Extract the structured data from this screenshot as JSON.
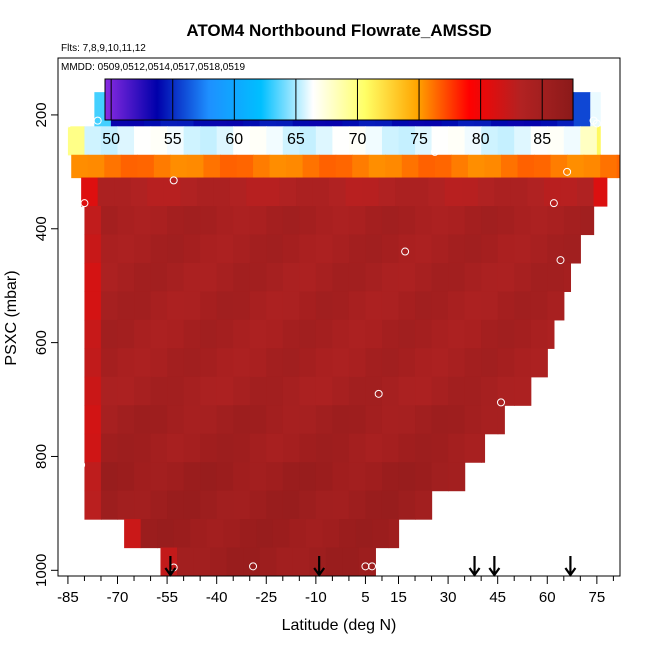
{
  "chart_data": {
    "type": "heatmap",
    "title": "ATOM4 Northbound Flowrate_AMSSD",
    "flights_label": "Flts: 7,8,9,10,11,12",
    "dates_label": "MMDD: 0509,0512,0514,0517,0518,0519",
    "xlabel": "Latitude (deg N)",
    "ylabel": "PSXC (mbar)",
    "xlim": [
      -88,
      82
    ],
    "ylim": [
      1010,
      100
    ],
    "x_ticks": [
      -85,
      -70,
      -55,
      -40,
      -25,
      -10,
      5,
      15,
      30,
      45,
      60,
      75
    ],
    "x_tick_labels": [
      "-85",
      "-70",
      "-55",
      "-40",
      "-25",
      "-10",
      "5",
      "15",
      "30",
      "45",
      "60",
      "75"
    ],
    "x_minor_step": 5,
    "y_ticks": [
      200,
      400,
      600,
      800,
      1000
    ],
    "y_tick_labels": [
      "200",
      "400",
      "600",
      "800",
      "1000"
    ],
    "colorbar": {
      "min": 49.5,
      "max": 87.5,
      "ticks": [
        50,
        55,
        60,
        65,
        70,
        75,
        80,
        85
      ],
      "tick_labels": [
        "50",
        "55",
        "60",
        "65",
        "70",
        "75",
        "80",
        "85"
      ],
      "colors": [
        "#8a2be2",
        "#0000aa",
        "#1e90ff",
        "#00bfff",
        "#ffffff",
        "#ffff66",
        "#ffa500",
        "#ff0000",
        "#b22222",
        "#8b1a1a"
      ]
    },
    "pressure_bins": [
      160,
      220,
      270,
      310,
      360,
      410,
      460,
      510,
      560,
      610,
      660,
      710,
      760,
      810,
      860,
      910,
      960,
      1010
    ],
    "bin_values": [
      54,
      66,
      76,
      83.5,
      84.5,
      84.5,
      84.5,
      84.5,
      84.5,
      84.5,
      84.5,
      85,
      85,
      85.5,
      85.5,
      85.5,
      85.5
    ],
    "bin_lat_ranges": [
      [
        -77,
        76
      ],
      [
        -85,
        76
      ],
      [
        -84,
        82
      ],
      [
        -81,
        78
      ],
      [
        -80,
        74
      ],
      [
        -80,
        70
      ],
      [
        -80,
        67
      ],
      [
        -80,
        65
      ],
      [
        -80,
        62
      ],
      [
        -80,
        60
      ],
      [
        -80,
        55
      ],
      [
        -80,
        47
      ],
      [
        -80,
        41
      ],
      [
        -80,
        35
      ],
      [
        -80,
        25
      ],
      [
        -68,
        15
      ],
      [
        -57,
        8
      ]
    ],
    "shoulder_values": [
      70,
      72,
      76,
      79,
      80,
      80,
      80,
      80,
      80,
      80,
      80,
      80,
      80,
      80,
      80,
      80,
      80
    ],
    "profile_points": [
      {
        "lat": -85,
        "p": 215
      },
      {
        "lat": -76,
        "p": 210
      },
      {
        "lat": 75,
        "p": 215
      },
      {
        "lat": 74,
        "p": 210
      },
      {
        "lat": 26,
        "p": 265
      },
      {
        "lat": 66,
        "p": 300
      },
      {
        "lat": -53,
        "p": 315
      },
      {
        "lat": -80,
        "p": 355
      },
      {
        "lat": 62,
        "p": 355
      },
      {
        "lat": 17,
        "p": 440
      },
      {
        "lat": 64,
        "p": 455
      },
      {
        "lat": 9,
        "p": 690
      },
      {
        "lat": 46,
        "p": 705
      },
      {
        "lat": -81,
        "p": 815
      },
      {
        "lat": -53,
        "p": 995
      },
      {
        "lat": -29,
        "p": 993
      },
      {
        "lat": 5,
        "p": 993
      },
      {
        "lat": 7,
        "p": 993
      }
    ],
    "arrow_lats": [
      -54,
      -9,
      38,
      44,
      67
    ]
  }
}
